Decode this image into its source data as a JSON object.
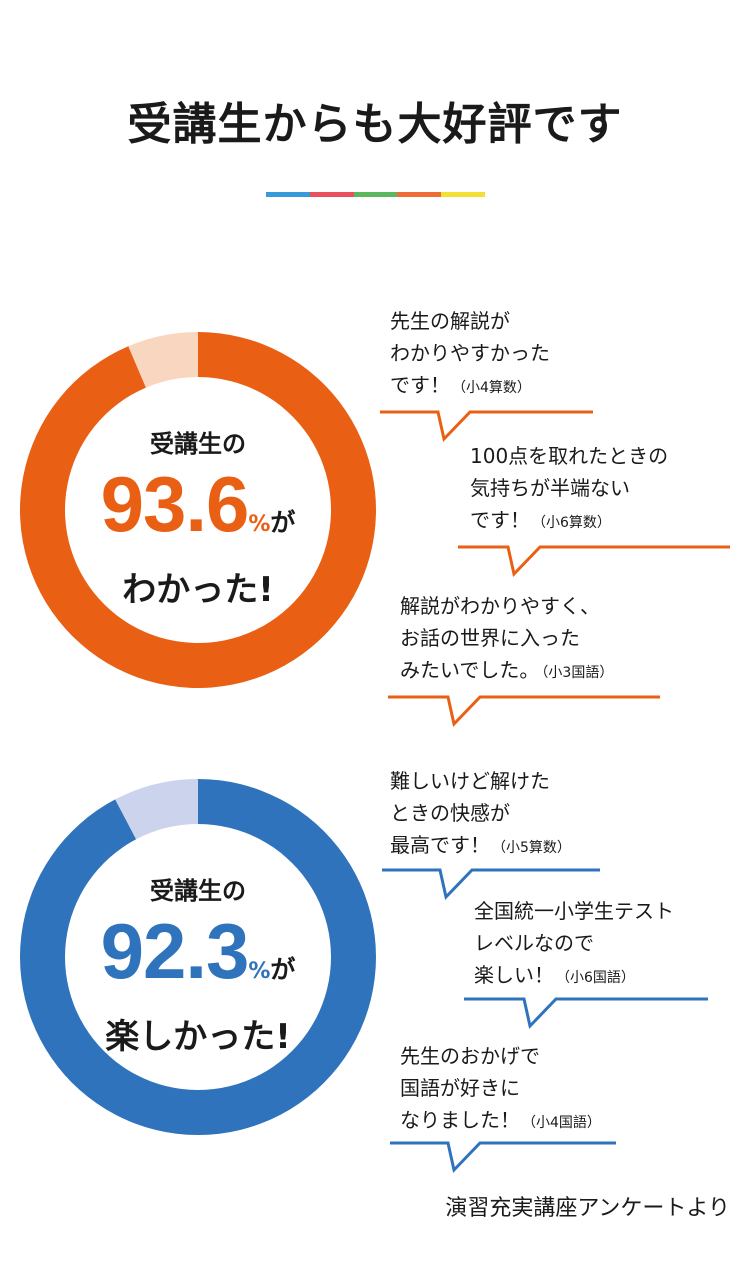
{
  "title": "受講生からも大好評です",
  "stripe_colors": [
    "#3a9ad9",
    "#e8505b",
    "#5cb85c",
    "#ee6c38",
    "#f3e033"
  ],
  "chart_data": [
    {
      "type": "pie",
      "donut": true,
      "values": [
        93.6,
        6.4
      ],
      "colors": [
        "#e95f14",
        "#f9d6bf"
      ],
      "center": {
        "lead": "受講生の",
        "value": "93.6",
        "percent": "%",
        "particle": "が",
        "tail": "わかった!"
      }
    },
    {
      "type": "pie",
      "donut": true,
      "values": [
        92.3,
        7.7
      ],
      "colors": [
        "#2e73bb",
        "#cbd4ec"
      ],
      "center": {
        "lead": "受講生の",
        "value": "92.3",
        "percent": "%",
        "particle": "が",
        "tail": "楽しかった!"
      }
    }
  ],
  "comments": [
    {
      "lines": [
        "先生の解説が",
        "わかりやすかった",
        "です！"
      ],
      "grade": "（小4算数）",
      "color": "#e95f14"
    },
    {
      "lines": [
        "100点を取れたときの",
        "気持ちが半端ない",
        "です！"
      ],
      "grade": "（小6算数）",
      "color": "#e95f14"
    },
    {
      "lines": [
        "解説がわかりやすく、",
        "お話の世界に入った",
        "みたいでした。"
      ],
      "grade": "（小3国語）",
      "color": "#e95f14"
    },
    {
      "lines": [
        "難しいけど解けた",
        "ときの快感が",
        "最高です！"
      ],
      "grade": "（小5算数）",
      "color": "#2e73bb"
    },
    {
      "lines": [
        "全国統一小学生テスト",
        "レベルなので",
        "楽しい！"
      ],
      "grade": "（小6国語）",
      "color": "#2e73bb"
    },
    {
      "lines": [
        "先生のおかげで",
        "国語が好きに",
        "なりました！"
      ],
      "grade": "（小4国語）",
      "color": "#2e73bb"
    }
  ],
  "source": "演習充実講座アンケートより"
}
